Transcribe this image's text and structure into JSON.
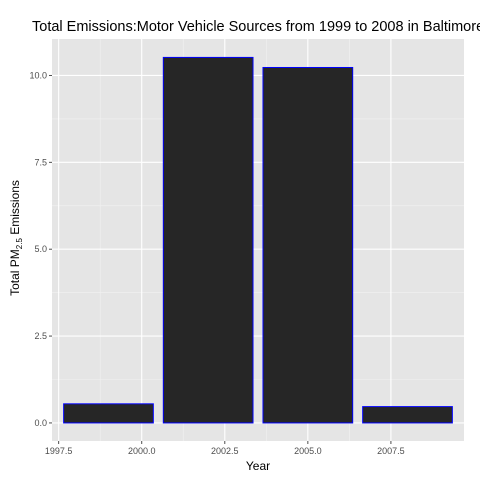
{
  "chart_data": {
    "type": "bar",
    "title": "Total Emissions:Motor Vehicle Sources from 1999 to 2008 in Baltimore",
    "xlabel": "Year",
    "ylabel": {
      "main": "Total PM",
      "subscript": "2.5",
      "suffix": " Emissions"
    },
    "x": [
      1999,
      2002,
      2005,
      2008
    ],
    "values": [
      0.55,
      10.52,
      10.23,
      0.47
    ],
    "xlim": [
      1997.3,
      2009.7
    ],
    "ylim": [
      -0.52,
      11.05
    ],
    "xticks": [
      1997.5,
      2000.0,
      2002.5,
      2005.0,
      2007.5
    ],
    "xtick_labels": [
      "1997.5",
      "2000.0",
      "2002.5",
      "2005.0",
      "2007.5"
    ],
    "yticks": [
      0.0,
      2.5,
      5.0,
      7.5,
      10.0
    ],
    "ytick_labels": [
      "0.0",
      "2.5",
      "5.0",
      "7.5",
      "10.0"
    ],
    "bar_width_years": 2.7,
    "grid": true,
    "colors": {
      "bar_fill": "#262626",
      "bar_border": "#0000ff",
      "panel_bg": "#e5e5e5",
      "grid_major": "#ffffff",
      "grid_minor": "#f2f2f2"
    }
  }
}
